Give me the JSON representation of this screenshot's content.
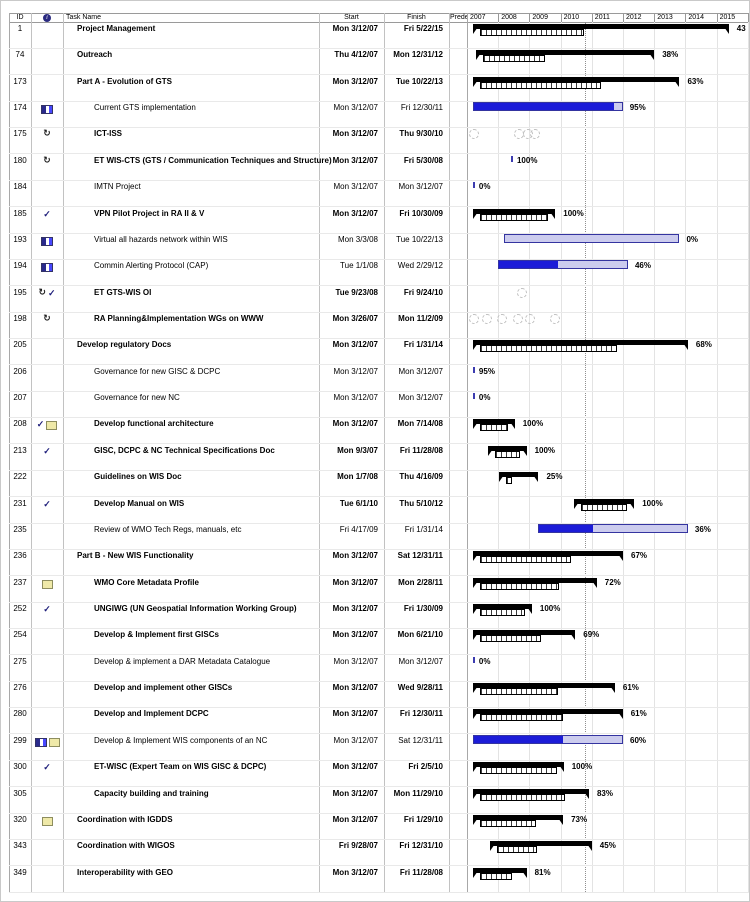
{
  "table": {
    "columns": {
      "id": "ID",
      "info_icon": "indicators-info-icon",
      "task": "Task Name",
      "start": "Start",
      "finish": "Finish",
      "predecessors": "Predece"
    },
    "rows": [
      {
        "id": "1",
        "icons": [],
        "indent": 0,
        "bold": true,
        "name": "Project Management",
        "start": "Mon 3/12/07",
        "finish": "Fri 5/22/15",
        "bar": {
          "type": "summary",
          "from": 2007.19,
          "to": 2015.39,
          "pct": 43,
          "label": "43"
        }
      },
      {
        "id": "74",
        "icons": [],
        "indent": 0,
        "bold": true,
        "name": "Outreach",
        "start": "Thu 4/12/07",
        "finish": "Mon 12/31/12",
        "bar": {
          "type": "summary",
          "from": 2007.28,
          "to": 2013.0,
          "pct": 38,
          "label": "38%"
        }
      },
      {
        "id": "173",
        "icons": [],
        "indent": 0,
        "bold": true,
        "name": "Part A - Evolution of GTS",
        "start": "Mon 3/12/07",
        "finish": "Tue 10/22/13",
        "bar": {
          "type": "summary",
          "from": 2007.19,
          "to": 2013.81,
          "pct": 63,
          "label": "63%"
        }
      },
      {
        "id": "174",
        "icons": [
          "window"
        ],
        "indent": 1,
        "bold": false,
        "name": "Current GTS implementation",
        "start": "Mon 3/12/07",
        "finish": "Fri 12/30/11",
        "bar": {
          "type": "task",
          "from": 2007.19,
          "to": 2011.99,
          "pct": 95,
          "label": "95%"
        }
      },
      {
        "id": "175",
        "icons": [
          "recurring"
        ],
        "indent": 1,
        "bold": true,
        "name": "ICT-ISS",
        "start": "Mon 3/12/07",
        "finish": "Thu 9/30/10",
        "bar": {
          "type": "recurring",
          "occurrences": [
            2007.06,
            2008.5,
            2008.78,
            2009.02
          ]
        }
      },
      {
        "id": "180",
        "icons": [
          "recurring"
        ],
        "indent": 1,
        "bold": true,
        "name": "ET WIS-CTS (GTS / Communication Techniques and Structure)",
        "start": "Mon 3/12/07",
        "finish": "Fri 5/30/08",
        "bar": {
          "type": "milestone",
          "from": 2008.41,
          "label": "100%"
        }
      },
      {
        "id": "184",
        "icons": [],
        "indent": 1,
        "bold": false,
        "name": "IMTN Project",
        "start": "Mon 3/12/07",
        "finish": "Mon 3/12/07",
        "bar": {
          "type": "milestone",
          "from": 2007.19,
          "label": "0%"
        }
      },
      {
        "id": "185",
        "icons": [
          "check"
        ],
        "indent": 1,
        "bold": true,
        "name": "VPN Pilot Project in RA II & V",
        "start": "Mon 3/12/07",
        "finish": "Fri 10/30/09",
        "bar": {
          "type": "summary",
          "from": 2007.19,
          "to": 2009.83,
          "pct": 100,
          "label": "100%"
        }
      },
      {
        "id": "193",
        "icons": [
          "window"
        ],
        "indent": 1,
        "bold": false,
        "name": "Virtual all hazards network within WIS",
        "start": "Mon 3/3/08",
        "finish": "Tue 10/22/13",
        "bar": {
          "type": "task",
          "from": 2008.17,
          "to": 2013.81,
          "pct": 0,
          "label": "0%"
        }
      },
      {
        "id": "194",
        "icons": [
          "window"
        ],
        "indent": 1,
        "bold": false,
        "name": "Commin Alerting Protocol (CAP)",
        "start": "Tue 1/1/08",
        "finish": "Wed 2/29/12",
        "bar": {
          "type": "task",
          "from": 2008.0,
          "to": 2012.16,
          "pct": 46,
          "label": "46%"
        }
      },
      {
        "id": "195",
        "icons": [
          "recurring",
          "check"
        ],
        "indent": 1,
        "bold": true,
        "name": "ET GTS-WIS OI",
        "start": "Tue 9/23/08",
        "finish": "Fri 9/24/10",
        "bar": {
          "type": "recurring",
          "occurrences": [
            2008.6
          ]
        }
      },
      {
        "id": "198",
        "icons": [
          "recurring"
        ],
        "indent": 1,
        "bold": true,
        "name": "RA Planning&Implementation WGs on WWW",
        "start": "Mon 3/26/07",
        "finish": "Mon 11/2/09",
        "bar": {
          "type": "recurring",
          "occurrences": [
            2007.06,
            2007.48,
            2007.96,
            2008.47,
            2008.86,
            2009.66
          ]
        }
      },
      {
        "id": "205",
        "icons": [],
        "indent": 0,
        "bold": true,
        "name": "Develop regulatory Docs",
        "start": "Mon 3/12/07",
        "finish": "Fri 1/31/14",
        "bar": {
          "type": "summary",
          "from": 2007.19,
          "to": 2014.08,
          "pct": 68,
          "label": "68%"
        }
      },
      {
        "id": "206",
        "icons": [],
        "indent": 1,
        "bold": false,
        "name": "Governance for new  GISC & DCPC",
        "start": "Mon 3/12/07",
        "finish": "Mon 3/12/07",
        "bar": {
          "type": "milestone",
          "from": 2007.19,
          "label": "95%"
        }
      },
      {
        "id": "207",
        "icons": [],
        "indent": 1,
        "bold": false,
        "name": "Governance for new  NC",
        "start": "Mon 3/12/07",
        "finish": "Mon 3/12/07",
        "bar": {
          "type": "milestone",
          "from": 2007.19,
          "label": "0%"
        }
      },
      {
        "id": "208",
        "icons": [
          "check",
          "note"
        ],
        "indent": 1,
        "bold": true,
        "name": "Develop functional architecture",
        "start": "Mon 3/12/07",
        "finish": "Mon 7/14/08",
        "bar": {
          "type": "summary",
          "from": 2007.19,
          "to": 2008.53,
          "pct": 100,
          "label": "100%"
        }
      },
      {
        "id": "213",
        "icons": [
          "check"
        ],
        "indent": 1,
        "bold": true,
        "name": "GISC, DCPC & NC Technical Specifications Doc",
        "start": "Mon 9/3/07",
        "finish": "Fri 11/28/08",
        "bar": {
          "type": "summary",
          "from": 2007.67,
          "to": 2008.91,
          "pct": 100,
          "label": "100%"
        }
      },
      {
        "id": "222",
        "icons": [],
        "indent": 1,
        "bold": true,
        "name": "Guidelines on WIS Doc",
        "start": "Mon 1/7/08",
        "finish": "Thu 4/16/09",
        "bar": {
          "type": "summary",
          "from": 2008.02,
          "to": 2009.29,
          "pct": 25,
          "label": "25%"
        }
      },
      {
        "id": "231",
        "icons": [
          "check"
        ],
        "indent": 1,
        "bold": true,
        "name": "Develop Manual on WIS",
        "start": "Tue 6/1/10",
        "finish": "Thu 5/10/12",
        "bar": {
          "type": "summary",
          "from": 2010.42,
          "to": 2012.36,
          "pct": 100,
          "label": "100%"
        }
      },
      {
        "id": "235",
        "icons": [],
        "indent": 1,
        "bold": false,
        "name": "Review of WMO Tech Regs, manuals, etc",
        "start": "Fri 4/17/09",
        "finish": "Fri 1/31/14",
        "bar": {
          "type": "task",
          "from": 2009.29,
          "to": 2014.08,
          "pct": 36,
          "label": "36%"
        }
      },
      {
        "id": "236",
        "icons": [],
        "indent": 0,
        "bold": true,
        "name": "Part B - New WIS Functionality",
        "start": "Mon 3/12/07",
        "finish": "Sat 12/31/11",
        "bar": {
          "type": "summary",
          "from": 2007.19,
          "to": 2012.0,
          "pct": 67,
          "label": "67%"
        }
      },
      {
        "id": "237",
        "icons": [
          "note"
        ],
        "indent": 1,
        "bold": true,
        "name": "WMO Core Metadata Profile",
        "start": "Mon 3/12/07",
        "finish": "Mon 2/28/11",
        "bar": {
          "type": "summary",
          "from": 2007.19,
          "to": 2011.16,
          "pct": 72,
          "label": "72%"
        }
      },
      {
        "id": "252",
        "icons": [
          "check"
        ],
        "indent": 1,
        "bold": true,
        "name": "UNGIWG (UN Geospatial Information Working Group)",
        "start": "Mon 3/12/07",
        "finish": "Fri 1/30/09",
        "bar": {
          "type": "summary",
          "from": 2007.19,
          "to": 2009.08,
          "pct": 100,
          "label": "100%"
        }
      },
      {
        "id": "254",
        "icons": [],
        "indent": 1,
        "bold": true,
        "name": "Develop & Implement first GISCs",
        "start": "Mon 3/12/07",
        "finish": "Mon 6/21/10",
        "bar": {
          "type": "summary",
          "from": 2007.19,
          "to": 2010.47,
          "pct": 69,
          "label": "69%"
        }
      },
      {
        "id": "275",
        "icons": [],
        "indent": 1,
        "bold": false,
        "name": "Develop & implement a DAR Metadata Catalogue",
        "start": "Mon 3/12/07",
        "finish": "Mon 3/12/07",
        "bar": {
          "type": "milestone",
          "from": 2007.19,
          "label": "0%"
        }
      },
      {
        "id": "276",
        "icons": [],
        "indent": 1,
        "bold": true,
        "name": "Develop and implement other GISCs",
        "start": "Mon 3/12/07",
        "finish": "Wed 9/28/11",
        "bar": {
          "type": "summary",
          "from": 2007.19,
          "to": 2011.74,
          "pct": 61,
          "label": "61%"
        }
      },
      {
        "id": "280",
        "icons": [],
        "indent": 1,
        "bold": true,
        "name": "Develop and Implement DCPC",
        "start": "Mon 3/12/07",
        "finish": "Fri 12/30/11",
        "bar": {
          "type": "summary",
          "from": 2007.19,
          "to": 2011.99,
          "pct": 61,
          "label": "61%"
        }
      },
      {
        "id": "299",
        "icons": [
          "window",
          "note"
        ],
        "indent": 1,
        "bold": false,
        "name": "Develop & Implement WIS components of an NC",
        "start": "Mon 3/12/07",
        "finish": "Sat 12/31/11",
        "bar": {
          "type": "task",
          "from": 2007.19,
          "to": 2012.0,
          "pct": 60,
          "label": "60%"
        }
      },
      {
        "id": "300",
        "icons": [
          "check"
        ],
        "indent": 1,
        "bold": true,
        "name": "ET-WISC (Expert Team on WIS GISC & DCPC)",
        "start": "Mon 3/12/07",
        "finish": "Fri 2/5/10",
        "bar": {
          "type": "summary",
          "from": 2007.19,
          "to": 2010.1,
          "pct": 100,
          "label": "100%"
        }
      },
      {
        "id": "305",
        "icons": [],
        "indent": 1,
        "bold": true,
        "name": "Capacity building and training",
        "start": "Mon 3/12/07",
        "finish": "Mon 11/29/10",
        "bar": {
          "type": "summary",
          "from": 2007.19,
          "to": 2010.91,
          "pct": 83,
          "label": "83%"
        }
      },
      {
        "id": "320",
        "icons": [
          "note"
        ],
        "indent": 0,
        "bold": true,
        "name": "Coordination with IGDDS",
        "start": "Mon 3/12/07",
        "finish": "Fri 1/29/10",
        "bar": {
          "type": "summary",
          "from": 2007.19,
          "to": 2010.08,
          "pct": 73,
          "label": "73%"
        }
      },
      {
        "id": "343",
        "icons": [],
        "indent": 0,
        "bold": true,
        "name": "Coordination with WIGOS",
        "start": "Fri 9/28/07",
        "finish": "Fri 12/31/10",
        "bar": {
          "type": "summary",
          "from": 2007.74,
          "to": 2011.0,
          "pct": 45,
          "label": "45%"
        }
      },
      {
        "id": "349",
        "icons": [],
        "indent": 0,
        "bold": true,
        "name": "Interoperability with GEO",
        "start": "Mon 3/12/07",
        "finish": "Fri 11/28/08",
        "bar": {
          "type": "summary",
          "from": 2007.19,
          "to": 2008.91,
          "pct": 81,
          "label": "81%"
        }
      }
    ]
  },
  "timeline": {
    "years": [
      "2007",
      "2008",
      "2009",
      "2010",
      "2011",
      "2012",
      "2013",
      "2014",
      "2015"
    ],
    "current_date_year_frac": 2010.78
  },
  "icon_legend": {
    "check": "completed-task-checkmark",
    "note": "task-note",
    "window": "inserted-project",
    "recurring": "recurring-task",
    "info": "indicators-column"
  },
  "colors": {
    "summary_bar": "#000000",
    "task_fill": "#1c1cd8",
    "task_remaining": "#ccccee",
    "task_border": "#3434a0",
    "milestone": "#3c3cb0",
    "note_yellow": "#efe9a8",
    "grid": "#e3e3e3"
  }
}
